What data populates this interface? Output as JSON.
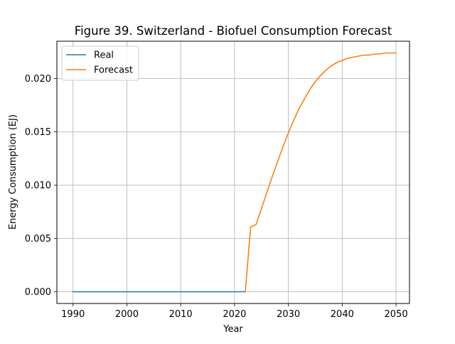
{
  "chart_data": {
    "type": "line",
    "title": "Figure 39. Switzerland - Biofuel Consumption Forecast",
    "xlabel": "Year",
    "ylabel": "Energy Consumption (EJ)",
    "xlim": [
      1987,
      2052.5
    ],
    "ylim": [
      -0.0011,
      0.0235
    ],
    "x_ticks": [
      1990,
      2000,
      2010,
      2020,
      2030,
      2040,
      2050
    ],
    "x_tick_labels": [
      "1990",
      "2000",
      "2010",
      "2020",
      "2030",
      "2040",
      "2050"
    ],
    "y_ticks": [
      0.0,
      0.005,
      0.01,
      0.015,
      0.02
    ],
    "y_tick_labels": [
      "0.000",
      "0.005",
      "0.010",
      "0.015",
      "0.020"
    ],
    "grid": true,
    "legend_position": "top-left",
    "series": [
      {
        "name": "Real",
        "color": "#1f77b4",
        "x": [
          1990,
          1991,
          1992,
          1993,
          1994,
          1995,
          1996,
          1997,
          1998,
          1999,
          2000,
          2001,
          2002,
          2003,
          2004,
          2005,
          2006,
          2007,
          2008,
          2009,
          2010,
          2011,
          2012,
          2013,
          2014,
          2015,
          2016,
          2017,
          2018,
          2019,
          2020,
          2021,
          2022
        ],
        "y": [
          0,
          0,
          0,
          0,
          0,
          0,
          0,
          0,
          0,
          0,
          0,
          0,
          0,
          0,
          0,
          0,
          0,
          0,
          0,
          0,
          0,
          0,
          0,
          0,
          0,
          0,
          0,
          0,
          0,
          0,
          0,
          0,
          0
        ]
      },
      {
        "name": "Forecast",
        "color": "#ff7f0e",
        "x": [
          2022,
          2023,
          2024,
          2025,
          2026,
          2027,
          2028,
          2029,
          2030,
          2031,
          2032,
          2033,
          2034,
          2035,
          2036,
          2037,
          2038,
          2039,
          2040,
          2041,
          2042,
          2043,
          2044,
          2045,
          2046,
          2047,
          2048,
          2049,
          2050
        ],
        "y": [
          0.0,
          0.0061,
          0.0063,
          0.0078,
          0.0093,
          0.0108,
          0.0122,
          0.0136,
          0.0149,
          0.0161,
          0.0172,
          0.0181,
          0.019,
          0.0197,
          0.0203,
          0.0208,
          0.0212,
          0.0215,
          0.0217,
          0.0219,
          0.022,
          0.0221,
          0.0222,
          0.0222,
          0.0223,
          0.0223,
          0.0224,
          0.0224,
          0.0224
        ]
      }
    ]
  }
}
